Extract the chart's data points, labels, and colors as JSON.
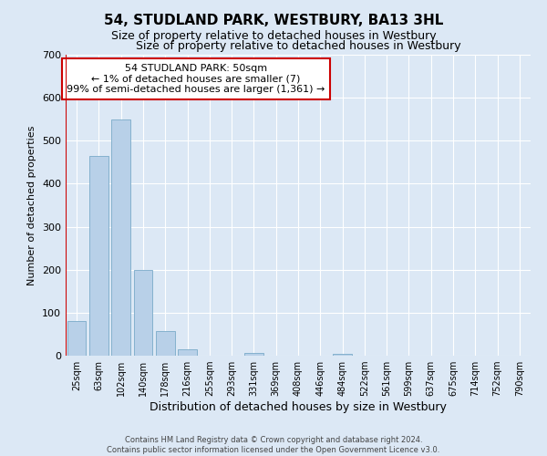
{
  "title": "54, STUDLAND PARK, WESTBURY, BA13 3HL",
  "subtitle": "Size of property relative to detached houses in Westbury",
  "xlabel": "Distribution of detached houses by size in Westbury",
  "ylabel": "Number of detached properties",
  "bar_labels": [
    "25sqm",
    "63sqm",
    "102sqm",
    "140sqm",
    "178sqm",
    "216sqm",
    "255sqm",
    "293sqm",
    "331sqm",
    "369sqm",
    "408sqm",
    "446sqm",
    "484sqm",
    "522sqm",
    "561sqm",
    "599sqm",
    "637sqm",
    "675sqm",
    "714sqm",
    "752sqm",
    "790sqm"
  ],
  "bar_values": [
    80,
    465,
    550,
    200,
    58,
    14,
    0,
    0,
    7,
    0,
    0,
    0,
    5,
    0,
    0,
    0,
    0,
    0,
    0,
    0,
    0
  ],
  "bar_color": "#b8d0e8",
  "bar_edge_color": "#7aaac8",
  "ylim": [
    0,
    700
  ],
  "yticks": [
    0,
    100,
    200,
    300,
    400,
    500,
    600,
    700
  ],
  "vline_color": "#cc0000",
  "annotation_title": "54 STUDLAND PARK: 50sqm",
  "annotation_line1": "← 1% of detached houses are smaller (7)",
  "annotation_line2": "99% of semi-detached houses are larger (1,361) →",
  "annotation_box_color": "#cc0000",
  "footer_line1": "Contains HM Land Registry data © Crown copyright and database right 2024.",
  "footer_line2": "Contains public sector information licensed under the Open Government Licence v3.0.",
  "bg_color": "#dce8f5",
  "grid_color": "#ffffff",
  "title_fontsize": 11,
  "subtitle_fontsize": 9,
  "xlabel_fontsize": 9,
  "ylabel_fontsize": 8,
  "annotation_fontsize": 8,
  "footer_fontsize": 6
}
